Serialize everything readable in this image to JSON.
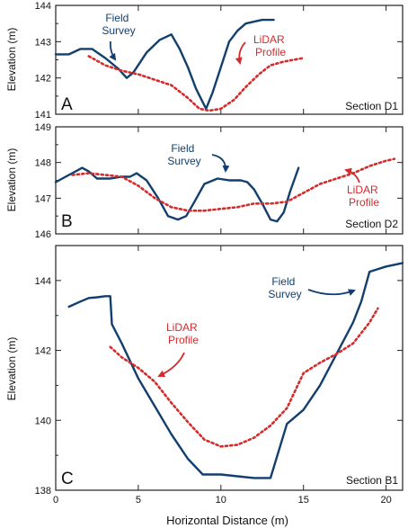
{
  "colors": {
    "field_survey": "#123f6e",
    "lidar_profile": "#d42b2b",
    "axes": "#222222"
  },
  "chart_data": [
    {
      "type": "line",
      "panel_letter": "A",
      "section_label": "Section D1",
      "ylabel": "Elevation (m)",
      "xlabel": "",
      "xlim": [
        0,
        21
      ],
      "ylim": [
        141,
        144
      ],
      "yticks": [
        141,
        142,
        143,
        144
      ],
      "yticklabels": [
        "141",
        "142",
        "143",
        "144"
      ],
      "grid": false,
      "series": [
        {
          "name": "Field Survey",
          "style": "solid",
          "x": [
            0,
            0.8,
            1.5,
            2.2,
            3.0,
            3.8,
            4.3,
            4.7,
            5.5,
            6.3,
            7.0,
            7.5,
            8.0,
            8.5,
            9.1,
            9.5,
            10.0,
            10.5,
            11.0,
            11.5,
            12.0,
            12.5,
            13.2
          ],
          "y": [
            142.65,
            142.65,
            142.8,
            142.8,
            142.55,
            142.25,
            142.0,
            142.15,
            142.7,
            143.05,
            143.2,
            142.8,
            142.3,
            141.7,
            141.15,
            141.6,
            142.3,
            143.0,
            143.3,
            143.5,
            143.55,
            143.6,
            143.6
          ]
        },
        {
          "name": "LiDAR Profile",
          "style": "dotted",
          "x": [
            2.0,
            3.0,
            4.0,
            5.0,
            6.0,
            7.0,
            8.0,
            8.7,
            9.3,
            10.0,
            10.8,
            11.5,
            12.3,
            13.0,
            13.8,
            14.4,
            15.0
          ],
          "y": [
            142.6,
            142.35,
            142.2,
            142.1,
            141.95,
            141.8,
            141.45,
            141.15,
            141.1,
            141.15,
            141.4,
            141.75,
            142.1,
            142.35,
            142.45,
            142.5,
            142.55
          ]
        }
      ],
      "annotations": [
        {
          "lines": [
            "Field",
            "Survey"
          ],
          "series": "Field Survey"
        },
        {
          "lines": [
            "LiDAR",
            "Profile"
          ],
          "series": "LiDAR Profile"
        }
      ]
    },
    {
      "type": "line",
      "panel_letter": "B",
      "section_label": "Section D2",
      "ylabel": "Elevation (m)",
      "xlabel": "",
      "xlim": [
        0,
        21
      ],
      "ylim": [
        146,
        149
      ],
      "yticks": [
        146,
        147,
        148,
        149
      ],
      "yticklabels": [
        "146",
        "147",
        "148",
        "149"
      ],
      "grid": false,
      "series": [
        {
          "name": "Field Survey",
          "style": "solid",
          "x": [
            0,
            0.6,
            1.2,
            1.6,
            2.0,
            2.5,
            3.3,
            4.0,
            4.5,
            4.9,
            5.5,
            6.2,
            6.8,
            7.4,
            7.9,
            8.4,
            9.0,
            9.8,
            10.5,
            11.2,
            11.6,
            12.0,
            12.5,
            13.0,
            13.4,
            13.8,
            14.2,
            14.7
          ],
          "y": [
            147.45,
            147.6,
            147.75,
            147.85,
            147.75,
            147.55,
            147.55,
            147.6,
            147.6,
            147.7,
            147.5,
            147.0,
            146.5,
            146.4,
            146.5,
            146.9,
            147.4,
            147.55,
            147.5,
            147.5,
            147.45,
            147.25,
            146.85,
            146.4,
            146.35,
            146.6,
            147.2,
            147.85
          ]
        },
        {
          "name": "LiDAR Profile",
          "style": "dotted",
          "x": [
            1.0,
            2.0,
            3.0,
            4.0,
            5.0,
            6.0,
            7.0,
            8.0,
            9.0,
            10.0,
            11.0,
            12.0,
            13.0,
            14.0,
            15.0,
            16.0,
            17.0,
            18.0,
            19.0,
            20.0,
            20.5
          ],
          "y": [
            147.65,
            147.7,
            147.65,
            147.6,
            147.35,
            147.0,
            146.75,
            146.65,
            146.65,
            146.7,
            146.75,
            146.85,
            146.85,
            146.9,
            147.15,
            147.4,
            147.55,
            147.7,
            147.9,
            148.05,
            148.1
          ]
        }
      ],
      "annotations": [
        {
          "lines": [
            "Field",
            "Survey"
          ],
          "series": "Field Survey"
        },
        {
          "lines": [
            "LiDAR",
            "Profile"
          ],
          "series": "LiDAR Profile"
        }
      ]
    },
    {
      "type": "line",
      "panel_letter": "C",
      "section_label": "Section B1",
      "ylabel": "Elevation (m)",
      "xlabel": "Horizontal Distance (m)",
      "xlim": [
        0,
        21
      ],
      "ylim": [
        138,
        145
      ],
      "xticks": [
        0,
        5,
        10,
        15,
        20
      ],
      "xticklabels": [
        "0",
        "5",
        "10",
        "15",
        "20"
      ],
      "yticks": [
        138,
        140,
        142,
        144
      ],
      "yticklabels": [
        "138",
        "140",
        "142",
        "144"
      ],
      "grid": false,
      "series": [
        {
          "name": "Field Survey",
          "style": "solid",
          "x": [
            0.8,
            1.5,
            2.0,
            2.5,
            3.0,
            3.3,
            3.4,
            4.0,
            5.0,
            6.0,
            7.0,
            8.0,
            8.9,
            10.0,
            11.0,
            12.0,
            13.0,
            14.0,
            14.5,
            15.0,
            16.0,
            17.0,
            18.0,
            18.5,
            19.0,
            20.0,
            21.0
          ],
          "y": [
            143.25,
            143.4,
            143.5,
            143.52,
            143.55,
            143.55,
            142.75,
            142.2,
            141.2,
            140.4,
            139.6,
            138.9,
            138.45,
            138.45,
            138.4,
            138.35,
            138.35,
            139.9,
            140.1,
            140.3,
            141.0,
            141.9,
            142.8,
            143.4,
            144.25,
            144.4,
            144.5
          ]
        },
        {
          "name": "LiDAR Profile",
          "style": "dotted",
          "x": [
            3.3,
            4.0,
            5.0,
            6.0,
            7.0,
            8.0,
            9.0,
            10.0,
            11.0,
            12.0,
            13.0,
            14.0,
            15.0,
            16.0,
            17.0,
            18.0,
            19.0,
            19.5
          ],
          "y": [
            142.1,
            141.8,
            141.5,
            141.1,
            140.5,
            139.95,
            139.45,
            139.25,
            139.3,
            139.5,
            139.85,
            140.35,
            141.35,
            141.65,
            141.9,
            142.2,
            142.8,
            143.2
          ]
        }
      ],
      "annotations": [
        {
          "lines": [
            "Field",
            "Survey"
          ],
          "series": "Field Survey"
        },
        {
          "lines": [
            "LiDAR",
            "Profile"
          ],
          "series": "LiDAR Profile"
        }
      ]
    }
  ]
}
